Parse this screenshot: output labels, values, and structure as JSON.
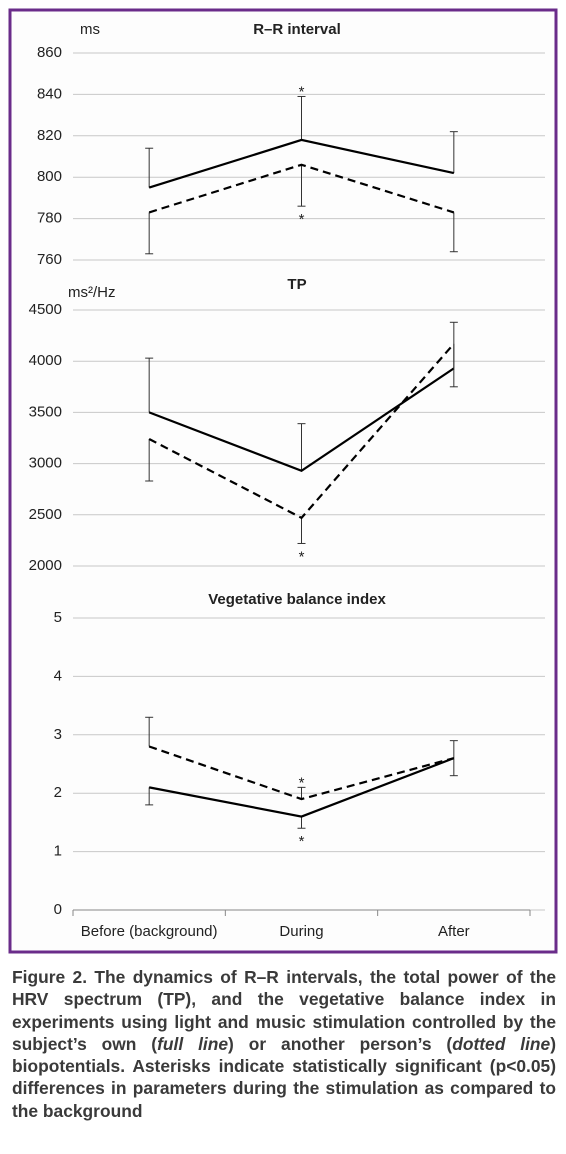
{
  "chart_data": [
    {
      "type": "line",
      "title": "R–R interval",
      "y_label": "ms",
      "ylim": [
        760,
        860
      ],
      "yticks": [
        760,
        780,
        800,
        820,
        840,
        860
      ],
      "grid": true,
      "series": [
        {
          "style": "solid",
          "color": "#000000",
          "values": [
            795,
            818,
            802
          ],
          "errors": [
            19,
            21,
            20
          ],
          "error_direction": "up"
        },
        {
          "style": "dashed",
          "color": "#000000",
          "values": [
            783,
            806,
            783
          ],
          "errors": [
            20,
            20,
            19
          ],
          "error_direction": "down"
        }
      ],
      "annotations": [
        {
          "text": "*",
          "series": 0,
          "point": 1
        },
        {
          "text": "*",
          "series": 1,
          "point": 1
        }
      ]
    },
    {
      "type": "line",
      "title": "TP",
      "y_label": "ms²/Hz",
      "ylim": [
        2000,
        4500
      ],
      "yticks": [
        2000,
        2500,
        3000,
        3500,
        4000,
        4500
      ],
      "grid": true,
      "series": [
        {
          "style": "solid",
          "color": "#000000",
          "values": [
            3500,
            2930,
            3930
          ],
          "errors": [
            530,
            460,
            450
          ],
          "error_direction": "up"
        },
        {
          "style": "dashed",
          "color": "#000000",
          "values": [
            3240,
            2470,
            4170
          ],
          "errors": [
            410,
            250,
            420
          ],
          "error_direction": "down"
        }
      ],
      "annotations": [
        {
          "text": "*",
          "series": 1,
          "point": 1
        }
      ]
    },
    {
      "type": "line",
      "title": "Vegetative balance index",
      "ylim": [
        0,
        5
      ],
      "yticks": [
        0,
        1,
        2,
        3,
        4,
        5
      ],
      "grid": true,
      "categories": [
        "Before (background)",
        "During",
        "After"
      ],
      "series": [
        {
          "style": "solid",
          "color": "#000000",
          "values": [
            2.1,
            1.6,
            2.6
          ],
          "errors": [
            0.3,
            0.2,
            0.3
          ],
          "error_direction": "down"
        },
        {
          "style": "dashed",
          "color": "#000000",
          "values": [
            2.8,
            1.9,
            2.6
          ],
          "errors": [
            0.5,
            0.2,
            0.3
          ],
          "error_direction": "up"
        }
      ],
      "annotations": [
        {
          "text": "*",
          "series": 1,
          "point": 1
        },
        {
          "text": "*",
          "series": 0,
          "point": 1
        }
      ]
    }
  ],
  "caption": [
    "Figure 2. The dynamics of R–R intervals, the total power of the HRV spectrum (TP), and the vegetative balance index in experiments using light and music stimulation controlled by the subject’s own (",
    "full line",
    ") or another person’s (",
    "dotted line",
    ") biopotentials. Asterisks indicate statistically significant (p<0.05) differences in parameters during the stimulation as compared to the background"
  ]
}
